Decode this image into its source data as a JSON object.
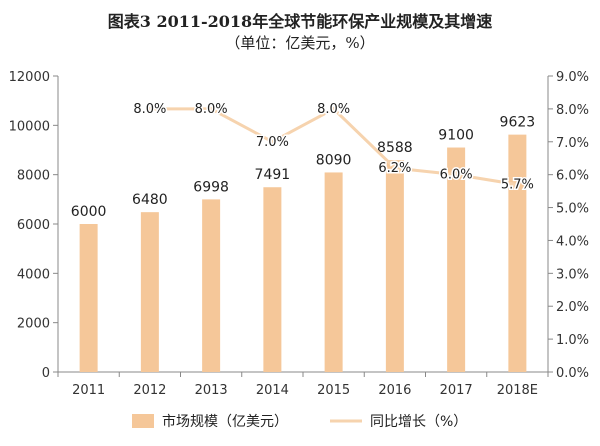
{
  "title": "图表3  2011-2018年全球节能环保产业规模及其增速",
  "subtitle": "（单位：亿美元，%）",
  "colors": {
    "bar": "#F5C799",
    "line": "#F6D3AE",
    "axis": "#888888",
    "text": "#222222"
  },
  "chart_data": {
    "type": "bar",
    "categories": [
      "2011",
      "2012",
      "2013",
      "2014",
      "2015",
      "2016",
      "2017",
      "2018E"
    ],
    "series": [
      {
        "name": "市场规模（亿美元）",
        "type": "bar",
        "axis": "left",
        "values": [
          6000,
          6480,
          6998,
          7491,
          8090,
          8588,
          9100,
          9623
        ],
        "labels": [
          "6000",
          "6480",
          "6998",
          "7491",
          "8090",
          "8588",
          "9100",
          "9623"
        ]
      },
      {
        "name": "同比增长（%）",
        "type": "line",
        "axis": "right",
        "values": [
          null,
          8.0,
          8.0,
          7.0,
          8.0,
          6.2,
          6.0,
          5.7
        ],
        "labels": [
          "",
          "8.0%",
          "8.0%",
          "7.0%",
          "8.0%",
          "6.2%",
          "6.0%",
          "5.7%"
        ]
      }
    ],
    "y_left": {
      "range": [
        0,
        12000
      ],
      "ticks": [
        "0",
        "2000",
        "4000",
        "6000",
        "8000",
        "10000",
        "12000"
      ]
    },
    "y_right": {
      "range": [
        0,
        9
      ],
      "ticks": [
        "0.0%",
        "1.0%",
        "2.0%",
        "3.0%",
        "4.0%",
        "5.0%",
        "6.0%",
        "7.0%",
        "8.0%",
        "9.0%"
      ]
    },
    "grid": false,
    "legend_position": "bottom"
  }
}
